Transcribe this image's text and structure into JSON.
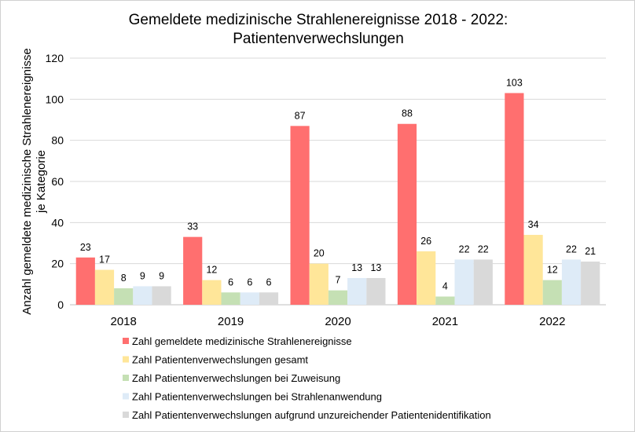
{
  "chart_data": {
    "type": "bar",
    "title": "Gemeldete medizinische Strahlenereignisse 2018 - 2022:",
    "subtitle": "Patientenverwechslungen",
    "xlabel": "",
    "ylabel_line1": "Anzahl gemeldete  medizinische  Strahlenereignisse",
    "ylabel_line2": "je Kategorie",
    "ylim": [
      0,
      120
    ],
    "yticks": [
      0,
      20,
      40,
      60,
      80,
      100,
      120
    ],
    "grid": true,
    "legend_position": "bottom",
    "categories": [
      "2018",
      "2019",
      "2020",
      "2021",
      "2022"
    ],
    "series": [
      {
        "name": "Zahl gemeldete medizinische Strahlenereignisse",
        "color": "#FF6F6F",
        "values": [
          23,
          33,
          87,
          88,
          103
        ]
      },
      {
        "name": "Zahl Patientenverwechslungen gesamt",
        "color": "#FFE699",
        "values": [
          17,
          12,
          20,
          26,
          34
        ]
      },
      {
        "name": "Zahl Patientenverwechslungen bei Zuweisung",
        "color": "#C5E0B4",
        "values": [
          8,
          6,
          7,
          4,
          12
        ]
      },
      {
        "name": "Zahl Patientenverwechslungen bei Strahlenanwendung",
        "color": "#DEEBF7",
        "values": [
          9,
          6,
          13,
          22,
          22
        ]
      },
      {
        "name": "Zahl Patientenverwechslungen aufgrund unzureichender Patientenidentifikation",
        "color": "#D9D9D9",
        "values": [
          9,
          6,
          13,
          22,
          21
        ]
      }
    ]
  }
}
